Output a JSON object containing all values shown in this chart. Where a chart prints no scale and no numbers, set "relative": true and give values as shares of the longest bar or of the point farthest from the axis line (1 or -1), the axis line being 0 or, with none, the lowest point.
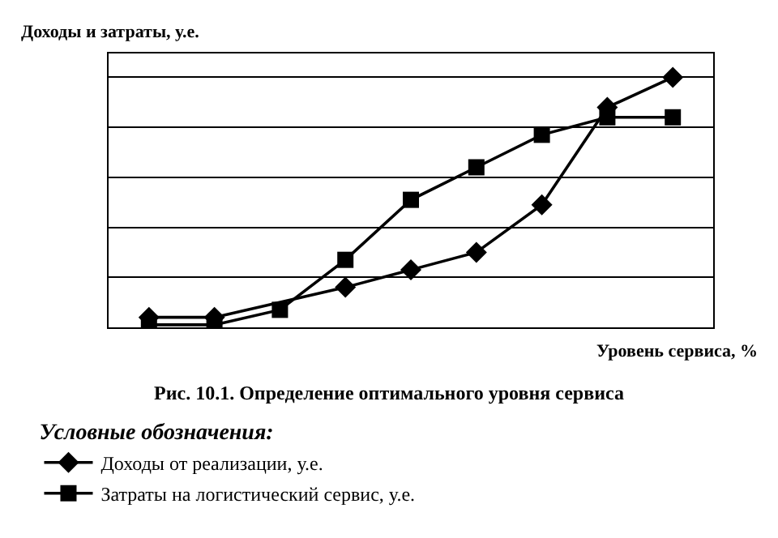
{
  "chart_data": {
    "type": "line",
    "relative": true,
    "title": "Рис. 10.1. Определение оптимального уровня сервиса",
    "ylabel": "Доходы и затраты, у.е.",
    "xlabel": "Уровень сервиса, %",
    "legend_title": "Условные обозначения:",
    "legend": "bottom left",
    "grid": "y",
    "tick_labels": false,
    "categories": [
      null,
      null,
      null,
      null,
      null,
      null,
      null,
      null,
      null
    ],
    "series": [
      {
        "name": "Доходы от реализации, у.е.",
        "color": "#000000",
        "marker": "diamond",
        "values": [
          0.04,
          0.04,
          null,
          0.16,
          0.23,
          0.3,
          0.49,
          0.88,
          1.0
        ]
      },
      {
        "name": "Затраты на логистический сервис, у.е.",
        "color": "#000000",
        "marker": "square",
        "values": [
          0.01,
          0.01,
          0.07,
          0.27,
          0.51,
          0.64,
          0.77,
          0.84,
          0.84
        ]
      }
    ]
  }
}
